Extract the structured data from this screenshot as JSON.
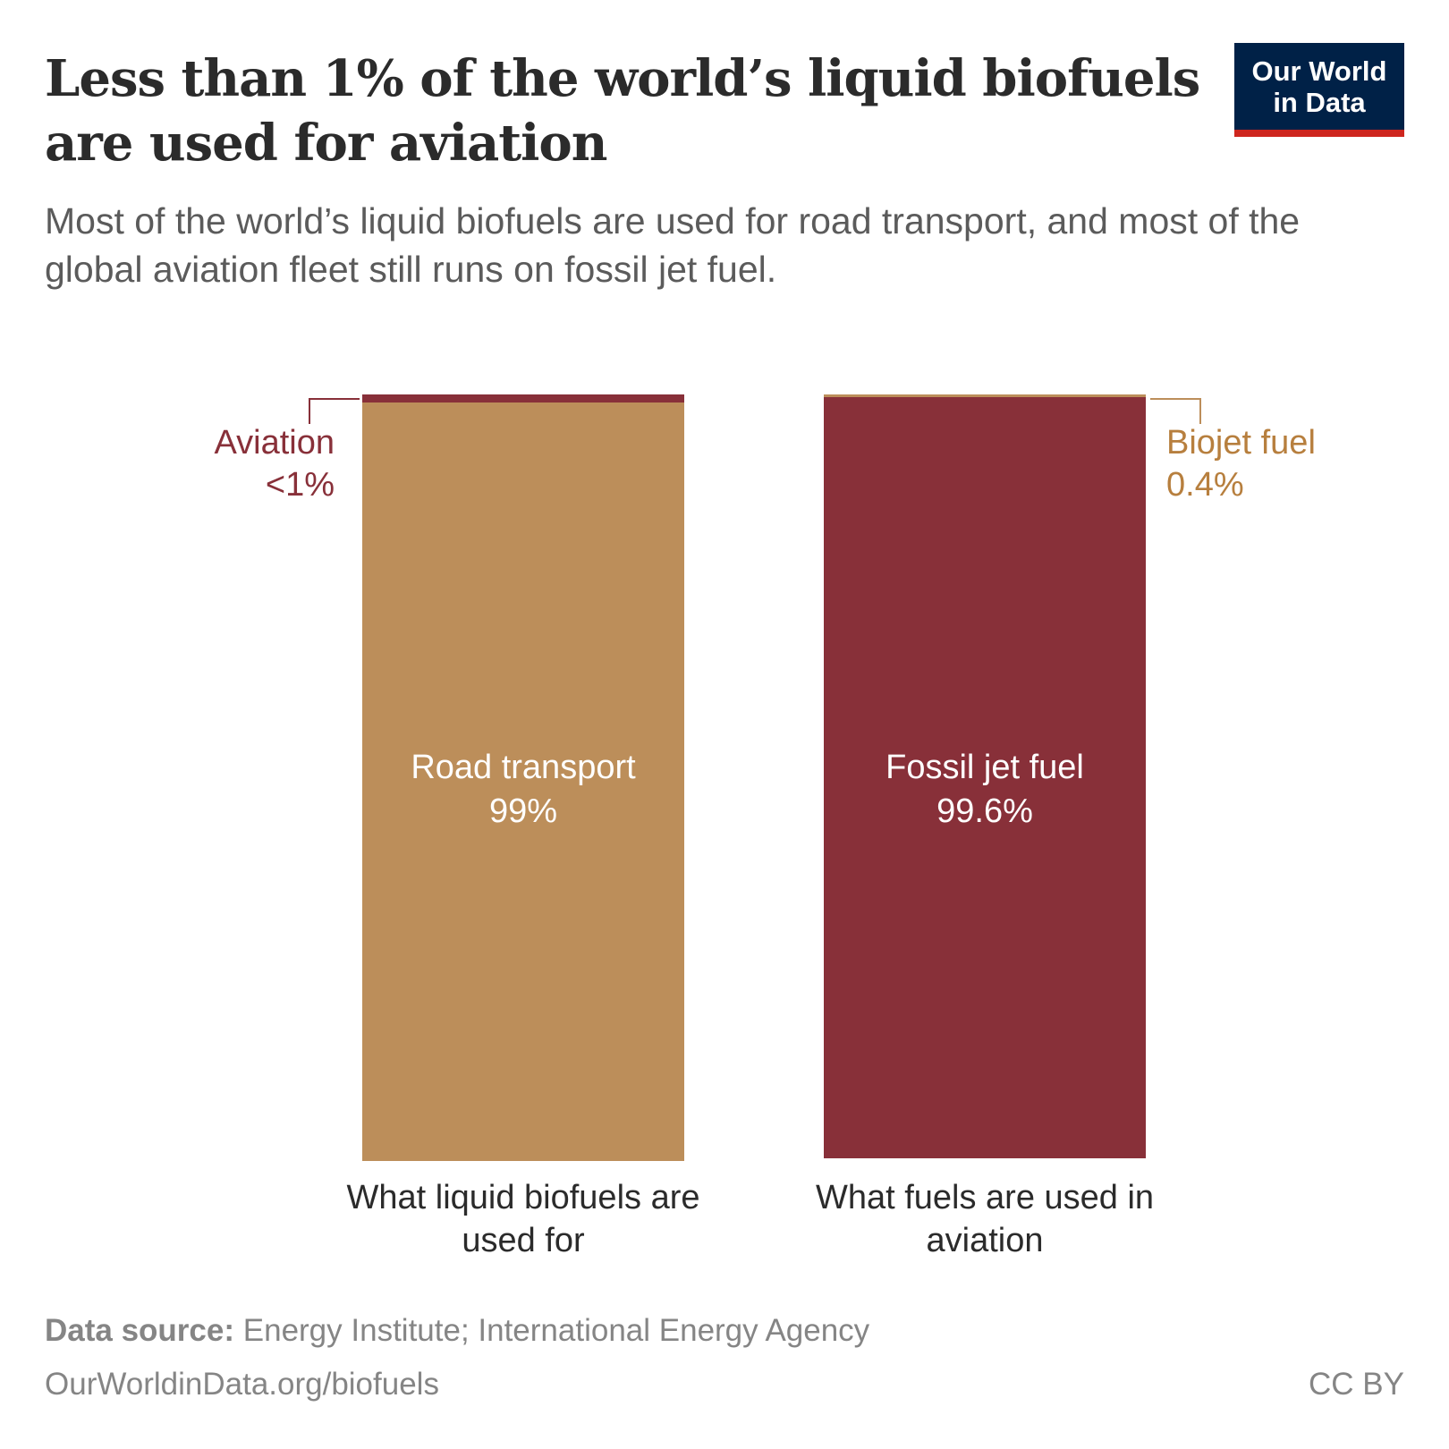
{
  "header": {
    "title": "Less than 1% of the world’s liquid biofuels are used for aviation",
    "subtitle": "Most of the world’s liquid biofuels are used for road transport, and most of the global aviation fleet still runs on fossil jet fuel.",
    "logo_line1": "Our World",
    "logo_line2": "in Data"
  },
  "colors": {
    "tan": "#bc8e5a",
    "maroon": "#883039",
    "tan_text": "#b77f3e",
    "maroon_text": "#883039"
  },
  "chart_data": {
    "type": "bar",
    "stacked": true,
    "ylim": [
      0,
      100
    ],
    "bars": [
      {
        "category": "What liquid biofuels are used for",
        "segments": [
          {
            "name": "Road transport",
            "value": 99,
            "label": "99%",
            "color": "#bc8e5a"
          },
          {
            "name": "Aviation",
            "value": 1,
            "label": "<1%",
            "color": "#883039"
          }
        ]
      },
      {
        "category": "What fuels are used in aviation",
        "segments": [
          {
            "name": "Fossil jet fuel",
            "value": 99.6,
            "label": "99.6%",
            "color": "#883039"
          },
          {
            "name": "Biojet fuel",
            "value": 0.4,
            "label": "0.4%",
            "color": "#bc8e5a"
          }
        ]
      }
    ]
  },
  "footer": {
    "source_label": "Data source:",
    "source": " Energy Institute; International Energy Agency",
    "url": "OurWorldinData.org/biofuels",
    "license": "CC BY"
  }
}
